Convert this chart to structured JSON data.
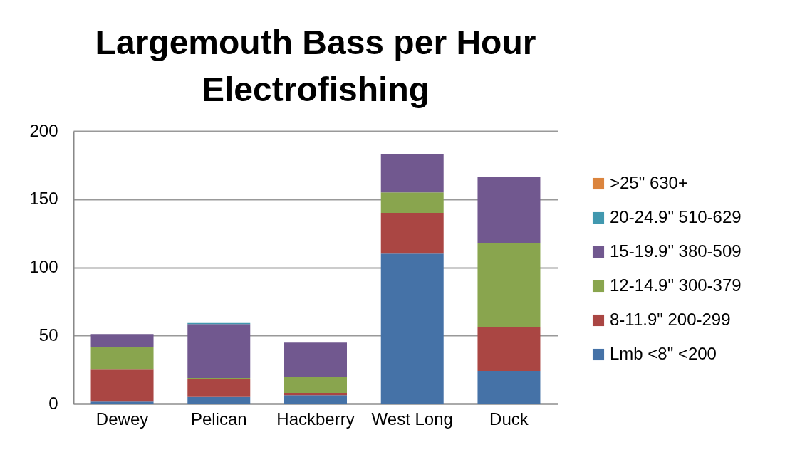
{
  "chart_data": {
    "type": "bar",
    "title": "Largemouth Bass per Hour Electrofishing",
    "categories": [
      "Dewey",
      "Pelican",
      "Hackberry",
      "West Long",
      "Duck"
    ],
    "stacked": true,
    "ylim": [
      0,
      200
    ],
    "yticks": [
      0,
      50,
      100,
      150,
      200
    ],
    "grid": "y",
    "legend": "right",
    "series": [
      {
        "name": "Lmb <8\" <200",
        "color": "#4572a7",
        "values": [
          2,
          5.3,
          6.2,
          110,
          24
        ]
      },
      {
        "name": "8-11.9\" 200-299",
        "color": "#aa4643",
        "values": [
          23,
          12.7,
          1.6,
          30,
          32
        ]
      },
      {
        "name": "12-14.9\" 300-379",
        "color": "#89a54e",
        "values": [
          16.5,
          0.8,
          12,
          15,
          62
        ]
      },
      {
        "name": "15-19.9\" 380-509",
        "color": "#71588f",
        "values": [
          9.5,
          39.5,
          25,
          28,
          48
        ]
      },
      {
        "name": "20-24.9\" 510-629",
        "color": "#4198af",
        "values": [
          0,
          0.9,
          0,
          0,
          0
        ]
      },
      {
        "name": ">25\" 630+",
        "color": "#db843d",
        "values": [
          0,
          0,
          0,
          0,
          0
        ]
      }
    ]
  }
}
